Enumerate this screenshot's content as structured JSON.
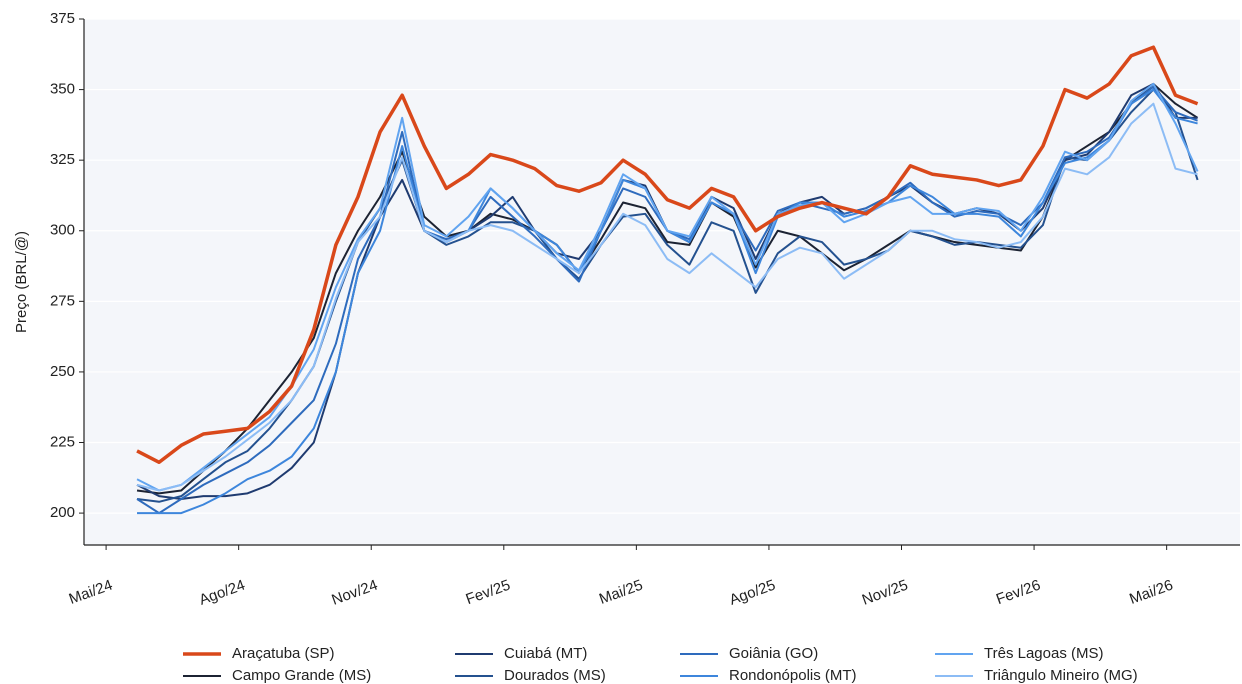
{
  "chart_data": {
    "type": "line",
    "y_label": "Preço (BRL/@)",
    "x": [
      0.7,
      1.2,
      1.7,
      2.2,
      2.7,
      3.2,
      3.7,
      4.2,
      4.7,
      5.2,
      5.7,
      6.2,
      6.7,
      7.2,
      7.7,
      8.2,
      8.7,
      9.2,
      9.7,
      10.2,
      10.7,
      11.2,
      11.7,
      12.2,
      12.7,
      13.2,
      13.7,
      14.2,
      14.7,
      15.2,
      15.7,
      16.2,
      16.7,
      17.2,
      17.7,
      18.2,
      18.7,
      19.2,
      19.7,
      20.2,
      20.7,
      21.2,
      21.7,
      22.2,
      22.7,
      23.2,
      23.7,
      24.2,
      24.7
    ],
    "xlim": [
      -0.5,
      25.66
    ],
    "xticks": [
      {
        "value": 0,
        "label": "Mai/24"
      },
      {
        "value": 3,
        "label": "Ago/24"
      },
      {
        "value": 6,
        "label": "Nov/24"
      },
      {
        "value": 9,
        "label": "Fev/25"
      },
      {
        "value": 12,
        "label": "Mai/25"
      },
      {
        "value": 15,
        "label": "Ago/25"
      },
      {
        "value": 18,
        "label": "Nov/25"
      },
      {
        "value": 21,
        "label": "Fev/26"
      },
      {
        "value": 24,
        "label": "Mai/26"
      }
    ],
    "ylim": [
      188.7,
      375
    ],
    "yticks": [
      200,
      225,
      250,
      275,
      300,
      325,
      350,
      375
    ],
    "grid": true,
    "legend": "bottom",
    "series": [
      {
        "name": "Araçatuba (SP)",
        "color": "#d9481a",
        "values": [
          222,
          218,
          224,
          228,
          229,
          230,
          236,
          245,
          265,
          295,
          312,
          335,
          348,
          330,
          315,
          320,
          327,
          325,
          322,
          316,
          314,
          317,
          325,
          320,
          311,
          308,
          315,
          312,
          300,
          305,
          308,
          310,
          308,
          306,
          312,
          323,
          320,
          319,
          318,
          316,
          318,
          330,
          350,
          347,
          352,
          362,
          365,
          348,
          345
        ]
      },
      {
        "name": "Campo Grande (MS)",
        "color": "#1c2333",
        "values": [
          208,
          207,
          208,
          215,
          222,
          230,
          240,
          250,
          262,
          285,
          300,
          312,
          328,
          305,
          298,
          300,
          306,
          304,
          300,
          295,
          285,
          297,
          310,
          308,
          296,
          295,
          310,
          305,
          287,
          300,
          298,
          292,
          286,
          290,
          295,
          300,
          298,
          296,
          295,
          294,
          293,
          305,
          325,
          330,
          335,
          345,
          352,
          345,
          340
        ]
      },
      {
        "name": "Cuiabá (MT)",
        "color": "#1f3b70",
        "values": [
          210,
          206,
          205,
          206,
          206,
          207,
          210,
          216,
          225,
          250,
          285,
          305,
          318,
          300,
          296,
          300,
          305,
          312,
          300,
          292,
          290,
          300,
          318,
          316,
          300,
          296,
          312,
          308,
          290,
          306,
          310,
          312,
          306,
          308,
          312,
          316,
          310,
          306,
          308,
          306,
          300,
          308,
          325,
          327,
          335,
          348,
          352,
          340,
          340
        ]
      },
      {
        "name": "Dourados (MS)",
        "color": "#24518f",
        "values": [
          205,
          204,
          206,
          212,
          218,
          222,
          230,
          240,
          252,
          275,
          296,
          308,
          325,
          300,
          295,
          298,
          303,
          303,
          300,
          290,
          283,
          295,
          305,
          306,
          295,
          288,
          303,
          300,
          278,
          292,
          298,
          296,
          288,
          290,
          293,
          300,
          298,
          295,
          296,
          295,
          294,
          302,
          326,
          325,
          332,
          342,
          350,
          342,
          318
        ]
      },
      {
        "name": "Goiânia (GO)",
        "color": "#2e6bbd",
        "values": [
          205,
          200,
          205,
          210,
          214,
          218,
          224,
          232,
          240,
          260,
          290,
          305,
          335,
          300,
          297,
          300,
          312,
          305,
          298,
          290,
          282,
          300,
          315,
          312,
          300,
          297,
          310,
          306,
          293,
          307,
          310,
          308,
          306,
          308,
          312,
          317,
          310,
          305,
          307,
          306,
          302,
          310,
          326,
          328,
          333,
          345,
          351,
          342,
          339
        ]
      },
      {
        "name": "Rondonópolis (MT)",
        "color": "#3d86dc",
        "values": [
          200,
          200,
          200,
          203,
          207,
          212,
          215,
          220,
          230,
          250,
          285,
          300,
          330,
          300,
          296,
          300,
          315,
          308,
          300,
          295,
          285,
          300,
          318,
          315,
          300,
          296,
          310,
          306,
          285,
          305,
          310,
          310,
          305,
          307,
          310,
          316,
          312,
          306,
          306,
          305,
          298,
          310,
          324,
          326,
          332,
          345,
          350,
          340,
          338
        ]
      },
      {
        "name": "Três Lagoas (MS)",
        "color": "#61a4f0",
        "values": [
          212,
          208,
          210,
          216,
          222,
          228,
          234,
          245,
          258,
          280,
          297,
          308,
          340,
          302,
          298,
          305,
          315,
          308,
          300,
          292,
          286,
          302,
          320,
          315,
          300,
          298,
          312,
          306,
          288,
          306,
          309,
          310,
          303,
          306,
          310,
          312,
          306,
          306,
          308,
          307,
          300,
          312,
          328,
          325,
          332,
          346,
          352,
          338,
          321
        ]
      },
      {
        "name": "Triângulo Mineiro (MG)",
        "color": "#8cbcf5",
        "values": [
          210,
          208,
          210,
          215,
          220,
          226,
          232,
          240,
          252,
          276,
          296,
          305,
          326,
          300,
          296,
          300,
          302,
          300,
          295,
          290,
          285,
          295,
          306,
          302,
          290,
          285,
          292,
          286,
          280,
          290,
          294,
          292,
          283,
          288,
          293,
          300,
          300,
          297,
          296,
          294,
          296,
          305,
          322,
          320,
          326,
          338,
          345,
          322,
          320
        ]
      }
    ]
  }
}
